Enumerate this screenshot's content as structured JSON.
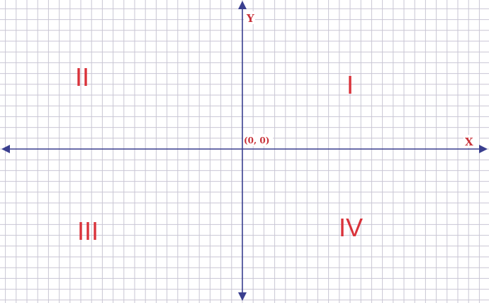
{
  "axes": {
    "x_label": "X",
    "y_label": "Y",
    "origin_label": "(0, 0)"
  },
  "quadrants": {
    "q1": "I",
    "q2": "II",
    "q3": "III",
    "q4": "IV"
  },
  "colors": {
    "grid": "#c9c6d4",
    "axis": "#3a3f8f",
    "axis_label": "#c8323a",
    "quadrant_label": "#d9323a",
    "background": "#ffffff"
  }
}
